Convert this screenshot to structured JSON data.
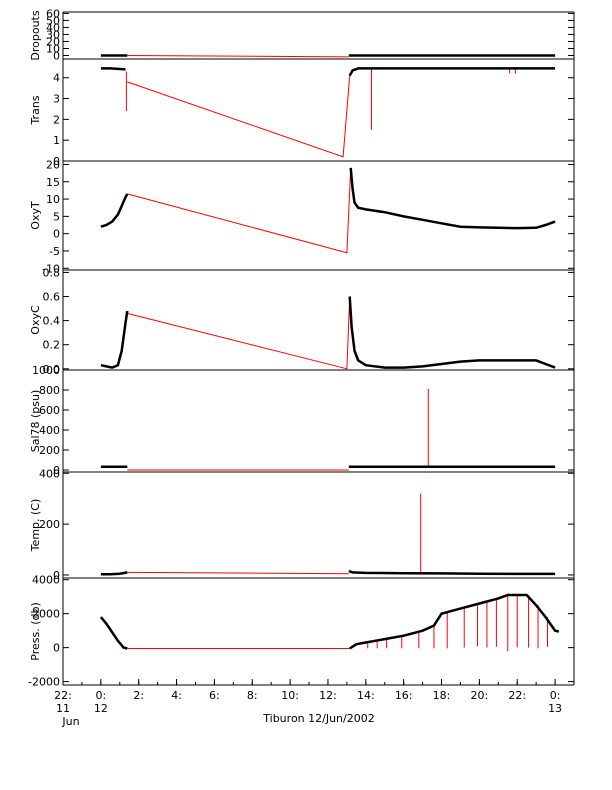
{
  "chart_data": {
    "type": "line",
    "figure_caption": "Tiburon 12/Jun/2002",
    "colors": {
      "data": "#000000",
      "interpolated": "#ff0000",
      "axes": "#000000"
    },
    "x_axis": {
      "range": [
        -2,
        25
      ],
      "ticks": [
        {
          "value": -2,
          "line1": "22:",
          "line2": "11",
          "line3": "Jun"
        },
        {
          "value": 0,
          "line1": "0:",
          "line2": "12",
          "line3": ""
        },
        {
          "value": 2,
          "line1": "2:",
          "line2": "",
          "line3": ""
        },
        {
          "value": 4,
          "line1": "4:",
          "line2": "",
          "line3": ""
        },
        {
          "value": 6,
          "line1": "6:",
          "line2": "",
          "line3": ""
        },
        {
          "value": 8,
          "line1": "8:",
          "line2": "",
          "line3": ""
        },
        {
          "value": 10,
          "line1": "10:",
          "line2": "",
          "line3": ""
        },
        {
          "value": 12,
          "line1": "12:",
          "line2": "",
          "line3": ""
        },
        {
          "value": 14,
          "line1": "14:",
          "line2": "",
          "line3": ""
        },
        {
          "value": 16,
          "line1": "16:",
          "line2": "",
          "line3": ""
        },
        {
          "value": 18,
          "line1": "18:",
          "line2": "",
          "line3": ""
        },
        {
          "value": 20,
          "line1": "20:",
          "line2": "",
          "line3": ""
        },
        {
          "value": 22,
          "line1": "22:",
          "line2": "",
          "line3": ""
        },
        {
          "value": 24,
          "line1": "0:",
          "line2": "13",
          "line3": ""
        }
      ]
    },
    "panels": [
      {
        "id": "dropouts",
        "ylabel": "Dropouts",
        "ylim": [
          -5,
          62
        ],
        "yticks": [
          0,
          10,
          20,
          30,
          40,
          50,
          60
        ],
        "yticklabels": [
          "0",
          "10",
          "20",
          "30",
          "40",
          "50",
          "60"
        ],
        "black_series": [
          {
            "x": [
              0,
              0.3,
              0.6,
              0.9,
              1.2,
              1.4
            ],
            "y": [
              0,
              0,
              0,
              0,
              0,
              0
            ]
          },
          {
            "x": [
              13.1,
              15,
              17,
              19,
              21,
              23,
              24
            ],
            "y": [
              0,
              0,
              0,
              0,
              0,
              0,
              0
            ]
          }
        ],
        "red_series": [
          {
            "x": [
              1.4,
              13.1
            ],
            "y": [
              0,
              -2
            ]
          }
        ],
        "red_spikes": []
      },
      {
        "id": "trans",
        "ylabel": "Trans",
        "ylim": [
          0,
          4.9
        ],
        "yticks": [
          0,
          1,
          2,
          3,
          4
        ],
        "yticklabels": [
          "0",
          "1",
          "2",
          "3",
          "4"
        ],
        "black_series": [
          {
            "x": [
              0,
              0.5,
              1.0,
              1.3
            ],
            "y": [
              4.45,
              4.45,
              4.42,
              4.4
            ]
          },
          {
            "x": [
              13.15,
              13.3,
              13.6,
              15,
              17,
              19,
              21,
              23,
              24
            ],
            "y": [
              4.1,
              4.35,
              4.45,
              4.45,
              4.45,
              4.45,
              4.45,
              4.45,
              4.45
            ]
          }
        ],
        "red_series": [
          {
            "x": [
              1.4,
              12.8,
              13.15
            ],
            "y": [
              3.8,
              0.2,
              4.1
            ]
          }
        ],
        "red_spikes": [
          {
            "x": 1.35,
            "y0": 4.3,
            "y1": 2.4
          },
          {
            "x": 14.3,
            "y0": 4.4,
            "y1": 1.5
          },
          {
            "x": 21.6,
            "y0": 4.45,
            "y1": 4.2
          },
          {
            "x": 21.9,
            "y0": 4.45,
            "y1": 4.2
          }
        ]
      },
      {
        "id": "oxyt",
        "ylabel": "OxyT",
        "ylim": [
          -10.5,
          21
        ],
        "yticks": [
          -10,
          -5,
          0,
          5,
          10,
          15,
          20
        ],
        "yticklabels": [
          "-10",
          "-5",
          "0",
          "5",
          "10",
          "15",
          "20"
        ],
        "black_series": [
          {
            "x": [
              0,
              0.3,
              0.6,
              0.9,
              1.1,
              1.3,
              1.4
            ],
            "y": [
              2,
              2.5,
              3.5,
              5.5,
              8,
              10.5,
              11.5
            ]
          },
          {
            "x": [
              13.2,
              13.3,
              13.4,
              13.6,
              14,
              15,
              16,
              17,
              18,
              19,
              20,
              21,
              22,
              23,
              23.5,
              24
            ],
            "y": [
              19,
              13,
              9,
              7.5,
              7,
              6.2,
              5,
              4,
              3,
              2,
              1.8,
              1.7,
              1.6,
              1.7,
              2.5,
              3.5
            ]
          }
        ],
        "red_series": [
          {
            "x": [
              1.4,
              13.0,
              13.2
            ],
            "y": [
              11.5,
              -5.5,
              19
            ]
          }
        ],
        "red_spikes": []
      },
      {
        "id": "oxyc",
        "ylabel": "OxyC",
        "ylim": [
          -0.01,
          0.82
        ],
        "yticks": [
          0,
          0.2,
          0.4,
          0.6,
          0.8
        ],
        "yticklabels": [
          "0.0",
          "0.2",
          "0.4",
          "0.6",
          "0.8"
        ],
        "black_series": [
          {
            "x": [
              0,
              0.3,
              0.6,
              0.9,
              1.1,
              1.3,
              1.4
            ],
            "y": [
              0.03,
              0.02,
              0.01,
              0.03,
              0.15,
              0.38,
              0.48
            ]
          },
          {
            "x": [
              13.15,
              13.25,
              13.4,
              13.6,
              14,
              15,
              16,
              17,
              18,
              19,
              20,
              21,
              22,
              23,
              23.5,
              24
            ],
            "y": [
              0.6,
              0.35,
              0.15,
              0.07,
              0.03,
              0.01,
              0.01,
              0.02,
              0.04,
              0.06,
              0.07,
              0.07,
              0.07,
              0.07,
              0.04,
              0.01
            ]
          }
        ],
        "red_series": [
          {
            "x": [
              1.4,
              13.0,
              13.15
            ],
            "y": [
              0.46,
              0.0,
              0.6
            ]
          }
        ],
        "red_spikes": []
      },
      {
        "id": "sal78",
        "ylabel": "Sal78 (psu)",
        "ylim": [
          -20,
          1000
        ],
        "yticks": [
          0,
          200,
          400,
          600,
          800,
          1000
        ],
        "yticklabels": [
          "0",
          "200",
          "400",
          "600",
          "800",
          "1000"
        ],
        "black_series": [
          {
            "x": [
              0,
              0.5,
              1.0,
              1.4
            ],
            "y": [
              33,
              33,
              33,
              33
            ]
          },
          {
            "x": [
              13.1,
              15,
              17,
              19,
              21,
              23,
              24
            ],
            "y": [
              33,
              33,
              33,
              33,
              33,
              33,
              33
            ]
          }
        ],
        "red_series": [
          {
            "x": [
              1.4,
              13.1
            ],
            "y": [
              0,
              0
            ]
          }
        ],
        "red_spikes": [
          {
            "x": 17.3,
            "y0": 33,
            "y1": 810
          }
        ]
      },
      {
        "id": "temp",
        "ylabel": "Temp. (C)",
        "ylim": [
          -12,
          405
        ],
        "yticks": [
          0,
          200,
          400
        ],
        "yticklabels": [
          "0",
          "200",
          "400"
        ],
        "black_series": [
          {
            "x": [
              0,
              0.5,
              1.0,
              1.4
            ],
            "y": [
              3,
              3,
              5,
              10
            ]
          },
          {
            "x": [
              13.1,
              13.3,
              14,
              16,
              18,
              20,
              22,
              24
            ],
            "y": [
              15,
              10,
              8,
              7,
              6,
              5,
              4,
              4
            ]
          }
        ],
        "red_series": [
          {
            "x": [
              1.4,
              13.1
            ],
            "y": [
              10,
              5
            ]
          }
        ],
        "red_spikes": [
          {
            "x": 16.9,
            "y0": 8,
            "y1": 320
          }
        ]
      },
      {
        "id": "press",
        "ylabel": "Press. (db)",
        "ylim": [
          -2200,
          4100
        ],
        "yticks": [
          -2000,
          0,
          2000,
          4000
        ],
        "yticklabels": [
          "-2000",
          "0",
          "2000",
          "4000"
        ],
        "black_series": [
          {
            "x": [
              0,
              0.3,
              0.6,
              0.9,
              1.2,
              1.4
            ],
            "y": [
              1800,
              1400,
              900,
              400,
              0,
              -50
            ]
          },
          {
            "x": [
              13.15,
              13.5,
              14,
              15,
              16,
              17,
              17.6,
              18,
              19,
              20,
              21,
              21.5,
              22,
              22.5,
              23,
              23.5,
              24,
              24.2
            ],
            "y": [
              -50,
              200,
              300,
              500,
              700,
              1000,
              1300,
              2000,
              2300,
              2600,
              2900,
              3100,
              3100,
              3100,
              2500,
              1800,
              1000,
              950
            ]
          }
        ],
        "red_series": [
          {
            "x": [
              1.4,
              13.15
            ],
            "y": [
              -50,
              -50
            ]
          }
        ],
        "red_spikes": [
          {
            "x": 14.1,
            "y0": 280,
            "y1": -40
          },
          {
            "x": 14.6,
            "y0": 350,
            "y1": -40
          },
          {
            "x": 15.1,
            "y0": 500,
            "y1": -40
          },
          {
            "x": 15.9,
            "y0": 650,
            "y1": -40
          },
          {
            "x": 16.8,
            "y0": 900,
            "y1": -40
          },
          {
            "x": 17.6,
            "y0": 1300,
            "y1": -40
          },
          {
            "x": 18.3,
            "y0": 2100,
            "y1": -40
          },
          {
            "x": 19.2,
            "y0": 2350,
            "y1": 0
          },
          {
            "x": 19.9,
            "y0": 2600,
            "y1": 80
          },
          {
            "x": 20.4,
            "y0": 2700,
            "y1": 10
          },
          {
            "x": 20.9,
            "y0": 2850,
            "y1": 50
          },
          {
            "x": 21.5,
            "y0": 3100,
            "y1": -200
          },
          {
            "x": 22.0,
            "y0": 3100,
            "y1": 20
          },
          {
            "x": 22.6,
            "y0": 3100,
            "y1": 0
          },
          {
            "x": 23.1,
            "y0": 2500,
            "y1": -40
          },
          {
            "x": 23.6,
            "y0": 1800,
            "y1": 50
          }
        ]
      }
    ]
  }
}
